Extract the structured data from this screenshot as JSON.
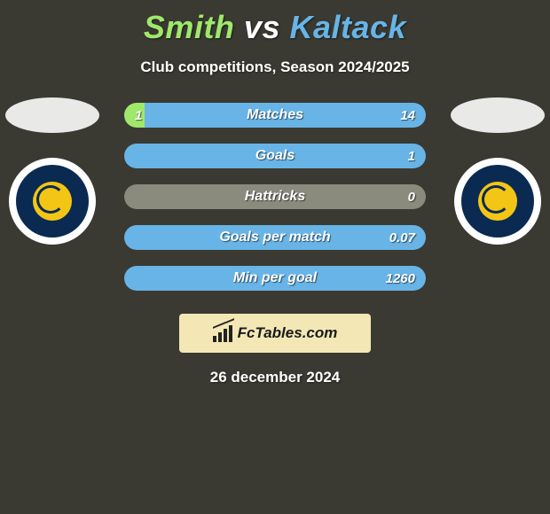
{
  "title": {
    "player_a": "Smith",
    "vs": " vs ",
    "player_b": "Kaltack",
    "color_a": "#9fe86b",
    "color_b": "#68b4e6"
  },
  "subtitle": "Club competitions, Season 2024/2025",
  "background_color": "#3a3a32",
  "bars": {
    "track_color": "#2b2b24",
    "color_a": "#9fe86b",
    "color_b": "#68b4e6",
    "neutral_color": "#8a8a7d",
    "rows": [
      {
        "label": "Matches",
        "left": "1",
        "right": "14",
        "left_pct": 6.7,
        "right_pct": 93.3
      },
      {
        "label": "Goals",
        "left": "",
        "right": "1",
        "left_pct": 0,
        "right_pct": 100
      },
      {
        "label": "Hattricks",
        "left": "",
        "right": "0",
        "left_pct": 0,
        "right_pct": 0
      },
      {
        "label": "Goals per match",
        "left": "",
        "right": "0.07",
        "left_pct": 0,
        "right_pct": 100
      },
      {
        "label": "Min per goal",
        "left": "",
        "right": "1260",
        "left_pct": 0,
        "right_pct": 100
      }
    ]
  },
  "club_badge": {
    "outer_bg": "#ffffff",
    "inner_bg": "#0a2a52",
    "core_bg": "#f3c515",
    "arc_color": "#0a2a52"
  },
  "footer": {
    "logo_bg": "#f3e7b5",
    "logo_text": "FcTables.com",
    "date": "26 december 2024"
  }
}
